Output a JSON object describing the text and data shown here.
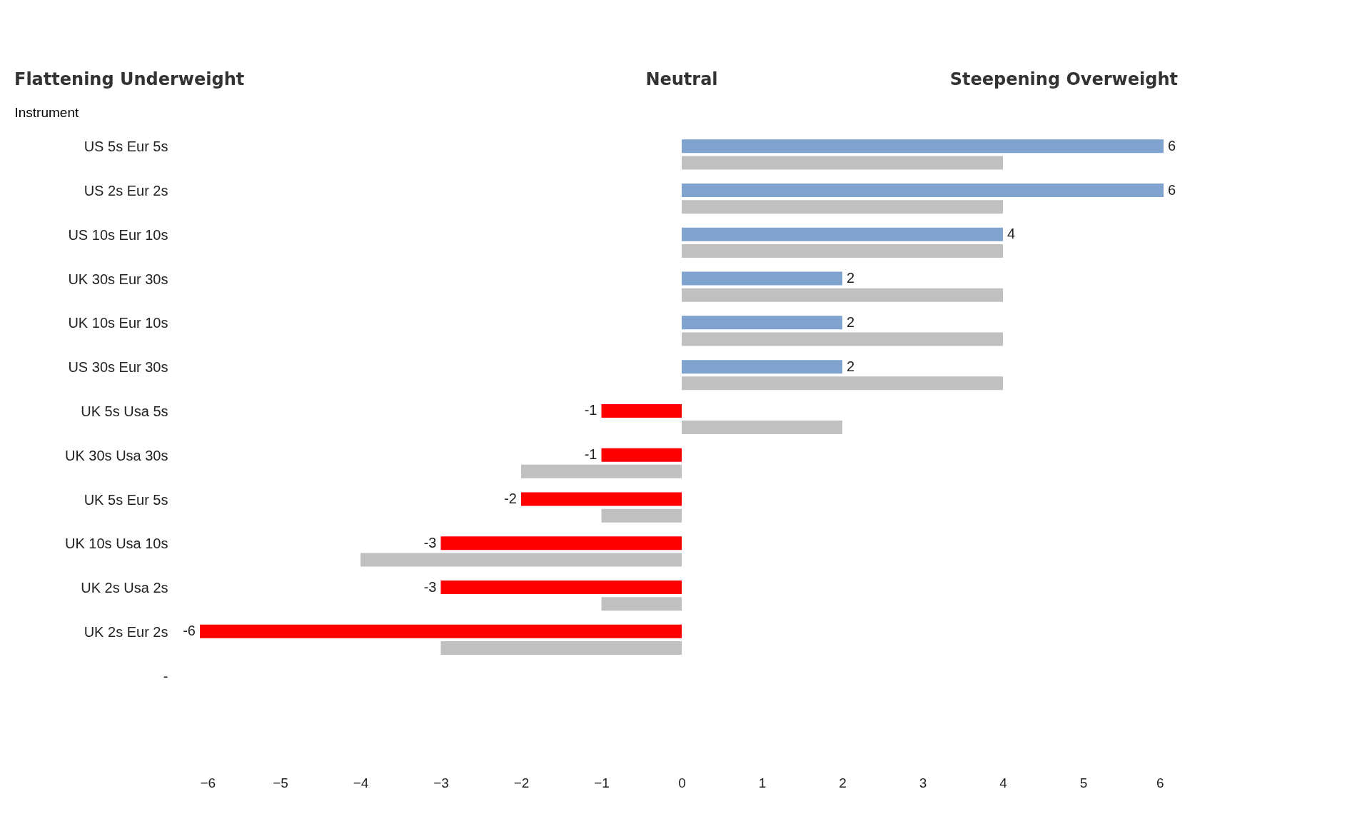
{
  "chart_data": {
    "type": "bar",
    "orientation": "horizontal",
    "title": "Flattening Underweight",
    "annotations": [
      "Neutral",
      "Steepening Overweight"
    ],
    "ylabel": "Instrument",
    "categories": [
      "US 5s  Eur 5s",
      "US 2s  Eur 2s",
      "US 10s  Eur 10s",
      "UK 30s  Eur 30s",
      "UK 10s  Eur 10s",
      "US 30s  Eur 30s",
      "UK 5s  Usa 5s",
      "UK 30s  Usa 30s",
      "UK 5s  Eur 5s",
      "UK 10s  Usa 10s",
      "UK 2s  Usa 2s",
      "UK 2s  Eur 2s",
      "-"
    ],
    "series": [
      {
        "colors": [
          "#7fa2cf",
          "#7fa2cf",
          "#7fa2cf",
          "#7fa2cf",
          "#7fa2cf",
          "#7fa2cf",
          "#ff0000",
          "#ff0000",
          "#ff0000",
          "#ff0000",
          "#ff0000",
          "#ff0000",
          null
        ],
        "values": [
          6,
          6,
          4,
          2,
          2,
          2,
          -1,
          -1,
          -2,
          -3,
          -3,
          -6,
          null
        ],
        "value_labels": [
          "6",
          "6",
          "4",
          "2",
          "2",
          "2",
          "-1",
          "-1",
          "-2",
          "-3",
          "-3",
          "-6",
          null
        ]
      },
      {
        "color": "#c0c0c0",
        "values": [
          4,
          4,
          4,
          4,
          4,
          4,
          2,
          -2,
          -1,
          -4,
          -1,
          -3,
          null
        ]
      }
    ],
    "xlim": [
      -6,
      6
    ],
    "xticks": [
      -6,
      -5,
      -4,
      -3,
      -2,
      -1,
      0,
      1,
      2,
      3,
      4,
      5,
      6
    ],
    "grid": false
  }
}
